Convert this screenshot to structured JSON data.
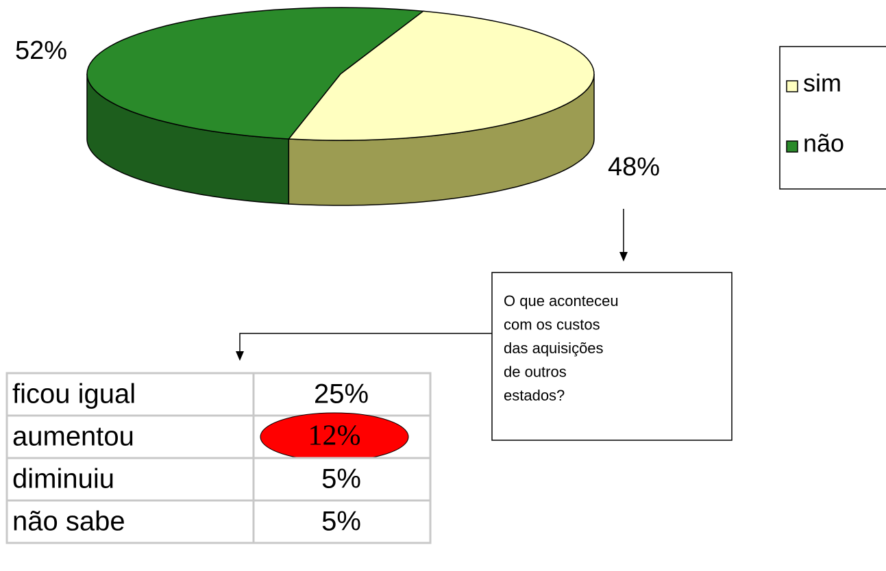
{
  "chart_data": {
    "type": "pie",
    "categories": [
      "sim",
      "não"
    ],
    "values": [
      48,
      52
    ],
    "value_labels": [
      "48%",
      "52%"
    ],
    "colors": [
      "#ffffc0",
      "#2a8a2a"
    ],
    "side_colors": [
      "#9c9c52",
      "#1d5e1d"
    ],
    "legend": "right"
  },
  "callout": [
    "O que aconteceu",
    "com os custos",
    "das aquisições",
    "de outros",
    "estados?"
  ],
  "table": {
    "rows": [
      [
        "ficou igual",
        "25%"
      ],
      [
        "aumentou",
        "12%"
      ],
      [
        "diminuiu",
        "5%"
      ],
      [
        "não sabe",
        "5%"
      ]
    ]
  }
}
